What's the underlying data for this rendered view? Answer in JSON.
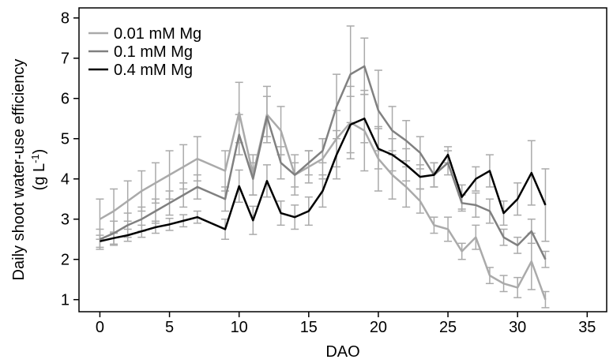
{
  "chart_data": {
    "type": "line",
    "xlabel": "DAO",
    "ylabel": "Daily shoot water-use efficiency",
    "ylabel_unit": [
      "(g L",
      "-1",
      ")"
    ],
    "x": [
      0,
      1,
      2,
      3,
      4,
      5,
      6,
      7,
      9,
      10,
      11,
      12,
      13,
      14,
      15,
      16,
      17,
      18,
      19,
      20,
      21,
      22,
      23,
      24,
      25,
      26,
      27,
      28,
      29,
      30,
      31,
      32
    ],
    "xlim": [
      -1.5,
      36.4
    ],
    "xticks": [
      0,
      5,
      10,
      15,
      20,
      25,
      30,
      35
    ],
    "ylim": [
      0.7,
      8.25
    ],
    "yticks": [
      1,
      2,
      3,
      4,
      5,
      6,
      7,
      8
    ],
    "error_color": "#aaaaaa",
    "legend": "upper left",
    "series": [
      {
        "name": "0.01 mM Mg",
        "color": "#aaaaaa",
        "values": [
          3.0,
          3.2,
          3.45,
          3.7,
          3.9,
          4.1,
          4.3,
          4.5,
          4.2,
          5.65,
          4.1,
          5.6,
          5.2,
          4.1,
          4.3,
          4.5,
          5.0,
          5.4,
          5.2,
          4.5,
          4.1,
          3.8,
          3.45,
          2.85,
          2.75,
          2.2,
          2.55,
          1.6,
          1.4,
          1.3,
          1.95,
          1.0
        ],
        "errors": [
          0.5,
          0.55,
          0.5,
          0.5,
          0.5,
          0.6,
          0.55,
          0.55,
          0.5,
          0.75,
          0.5,
          0.7,
          0.6,
          0.5,
          0.4,
          0.5,
          0.7,
          0.9,
          1.0,
          0.8,
          0.6,
          0.5,
          0.3,
          0.2,
          0.3,
          0.2,
          0.3,
          0.2,
          0.2,
          0.25,
          0.7,
          0.2
        ]
      },
      {
        "name": "0.1 mM Mg",
        "color": "#808080",
        "values": [
          2.5,
          2.65,
          2.85,
          3.0,
          3.2,
          3.4,
          3.6,
          3.8,
          3.5,
          5.1,
          4.0,
          5.55,
          4.4,
          4.1,
          4.4,
          4.7,
          5.8,
          6.6,
          6.8,
          5.7,
          5.2,
          4.95,
          4.65,
          4.1,
          4.4,
          3.4,
          3.35,
          3.2,
          2.55,
          2.35,
          2.7,
          2.0
        ],
        "errors": [
          0.25,
          0.3,
          0.3,
          0.3,
          0.3,
          0.3,
          0.3,
          0.3,
          0.3,
          0.5,
          0.4,
          0.5,
          0.4,
          0.3,
          0.3,
          0.3,
          0.8,
          1.2,
          0.7,
          1.0,
          0.6,
          0.5,
          0.4,
          0.3,
          0.3,
          0.2,
          0.3,
          0.3,
          0.2,
          0.2,
          0.3,
          0.2
        ]
      },
      {
        "name": "0.4 mM Mg",
        "color": "#000000",
        "values": [
          2.45,
          2.53,
          2.6,
          2.7,
          2.8,
          2.87,
          2.96,
          3.05,
          2.75,
          3.82,
          2.97,
          3.95,
          3.15,
          3.05,
          3.2,
          3.7,
          4.6,
          5.35,
          5.5,
          4.75,
          4.6,
          4.35,
          4.05,
          4.1,
          4.6,
          3.55,
          4.0,
          4.2,
          3.15,
          3.5,
          4.15,
          3.35
        ],
        "errors": [
          0.15,
          0.15,
          0.15,
          0.15,
          0.15,
          0.15,
          0.15,
          0.15,
          0.25,
          0.4,
          0.35,
          0.4,
          0.3,
          0.3,
          0.35,
          0.4,
          0.6,
          0.7,
          0.6,
          0.5,
          0.4,
          0.4,
          0.3,
          0.3,
          0.2,
          0.3,
          0.3,
          0.4,
          0.3,
          0.4,
          0.8,
          0.9
        ]
      }
    ]
  }
}
